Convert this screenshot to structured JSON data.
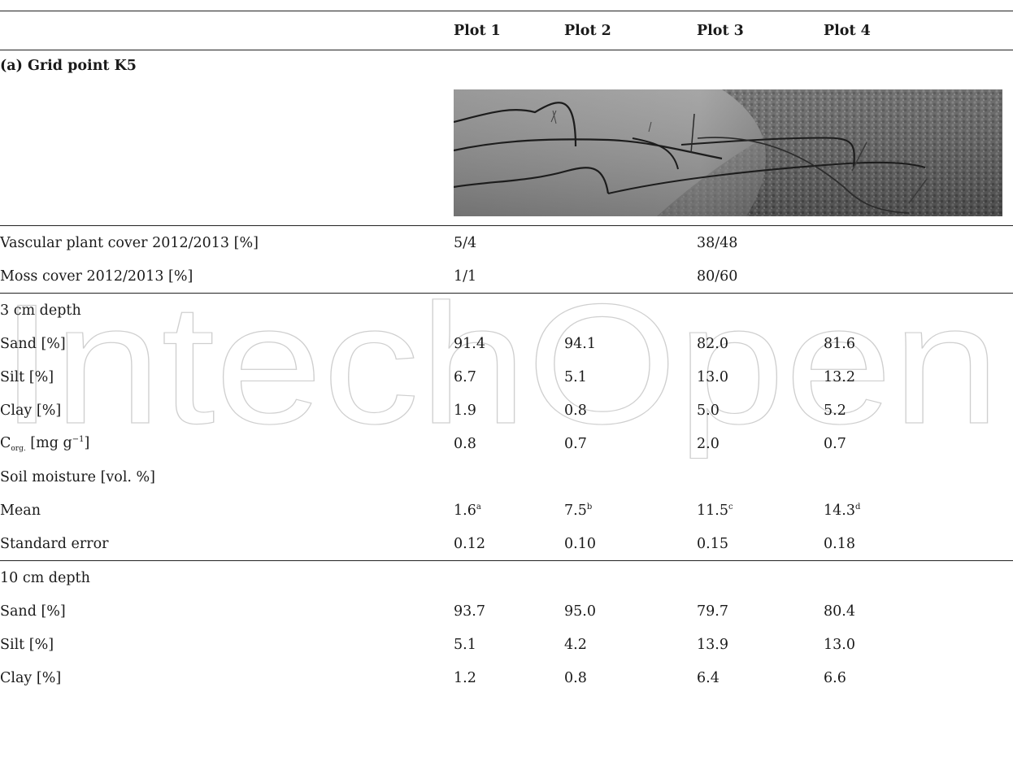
{
  "watermark": {
    "text": "IntechOpen"
  },
  "header": {
    "blank": "",
    "plots": [
      "Plot 1",
      "Plot 2",
      "Plot 3",
      "Plot 4"
    ]
  },
  "section": {
    "title": "(a) Grid point K5"
  },
  "cover": [
    {
      "label": "Vascular plant cover 2012/2013 [%]",
      "values": [
        "5/4",
        "",
        "38/48",
        ""
      ]
    },
    {
      "label": "Moss cover 2012/2013 [%]",
      "values": [
        "1/1",
        "",
        "80/60",
        ""
      ]
    }
  ],
  "depth3": {
    "title": "3 cm depth",
    "sand": {
      "label": "Sand [%]",
      "values": [
        "91.4",
        "94.1",
        "82.0",
        "81.6"
      ]
    },
    "silt": {
      "label": "Silt [%]",
      "values": [
        "6.7",
        "5.1",
        "13.0",
        "13.2"
      ]
    },
    "clay": {
      "label": "Clay [%]",
      "values": [
        "1.9",
        "0.8",
        "5.0",
        "5.2"
      ]
    },
    "corg": {
      "label_c": "C",
      "label_sub": "org.",
      "label_mid": " [mg g",
      "label_sup": "−1",
      "label_end": "]",
      "values": [
        "0.8",
        "0.7",
        "2.0",
        "0.7"
      ]
    },
    "moisture_title": "Soil moisture [vol. %]",
    "mean": {
      "label": "Mean",
      "values": [
        "1.6",
        "7.5",
        "11.5",
        "14.3"
      ],
      "letters": [
        "a",
        "b",
        "c",
        "d"
      ]
    },
    "se": {
      "label": "Standard error",
      "values": [
        "0.12",
        "0.10",
        "0.15",
        "0.18"
      ]
    }
  },
  "depth10": {
    "title": "10 cm depth",
    "sand": {
      "label": "Sand [%]",
      "values": [
        "93.7",
        "95.0",
        "79.7",
        "80.4"
      ]
    },
    "silt": {
      "label": "Silt [%]",
      "values": [
        "5.1",
        "4.2",
        "13.9",
        "13.0"
      ]
    },
    "clay": {
      "label": "Clay [%]",
      "values": [
        "1.2",
        "0.8",
        "6.4",
        "6.6"
      ]
    }
  }
}
